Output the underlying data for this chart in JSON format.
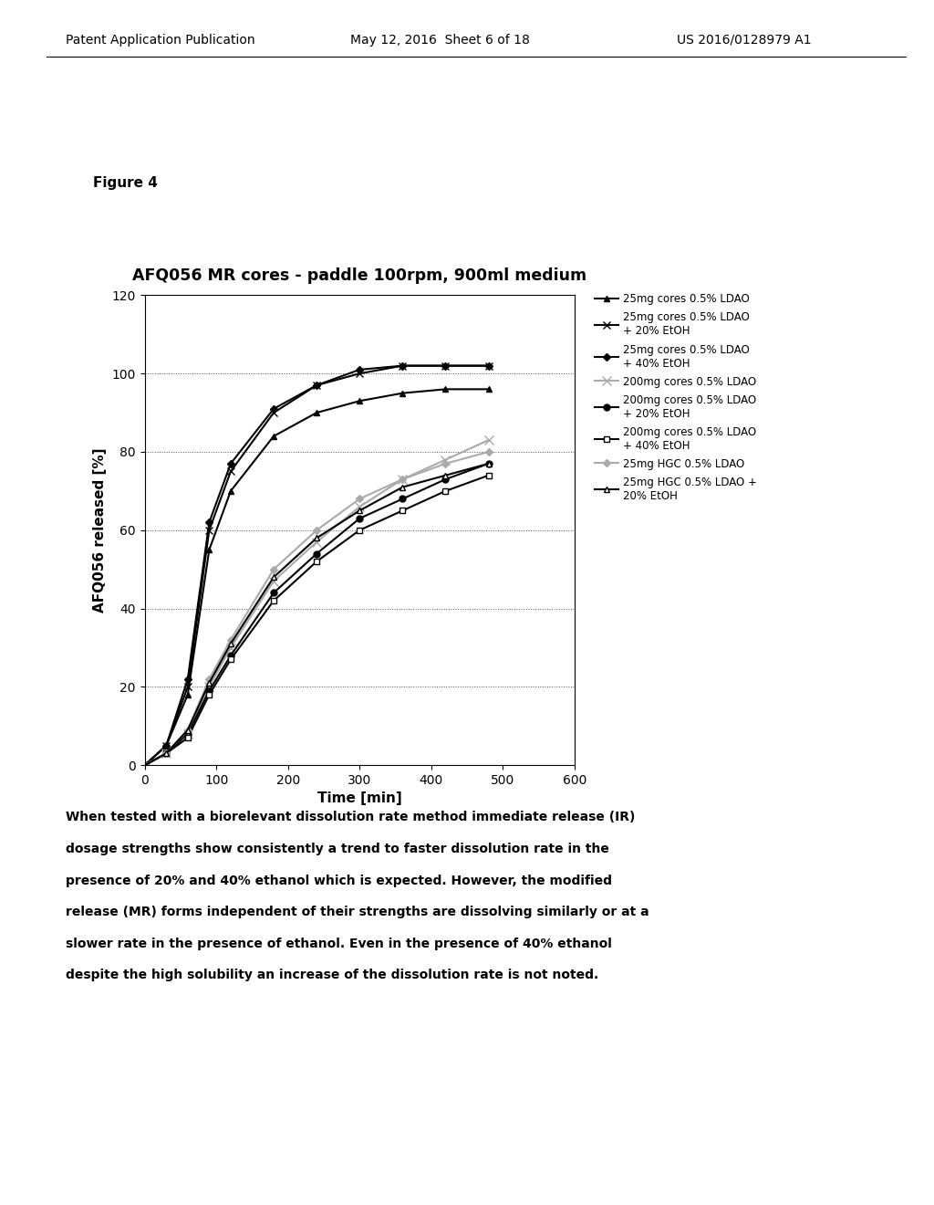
{
  "title": "AFQ056 MR cores - paddle 100rpm, 900ml medium",
  "xlabel": "Time [min]",
  "ylabel": "AFQ056 released [%]",
  "figure_label": "Figure 4",
  "header_left": "Patent Application Publication",
  "header_mid": "May 12, 2016  Sheet 6 of 18",
  "header_right": "US 2016/0128979 A1",
  "xlim": [
    0,
    600
  ],
  "ylim": [
    0,
    120
  ],
  "xticks": [
    0,
    100,
    200,
    300,
    400,
    500,
    600
  ],
  "yticks": [
    0,
    20,
    40,
    60,
    80,
    100,
    120
  ],
  "body_lines": [
    "When tested with a biorelevant dissolution rate method immediate release (IR)",
    "dosage strengths show consistently a trend to faster dissolution rate in the",
    "presence of 20% and 40% ethanol which is expected. However, the modified",
    "release (MR) forms independent of their strengths are dissolving similarly or at a",
    "slower rate in the presence of ethanol. Even in the presence of 40% ethanol",
    "despite the high solubility an increase of the dissolution rate is not noted."
  ],
  "series": [
    {
      "label": "25mg cores 0.5% LDAO",
      "x": [
        0,
        30,
        60,
        90,
        120,
        180,
        240,
        300,
        360,
        420,
        480
      ],
      "y": [
        0,
        5,
        18,
        55,
        70,
        84,
        90,
        93,
        95,
        96,
        96
      ],
      "marker": "^",
      "color": "#000000",
      "linestyle": "-",
      "ms": 5,
      "mfc": "#000000",
      "lw": 1.5
    },
    {
      "label": "25mg cores 0.5% LDAO\n+ 20% EtOH",
      "x": [
        0,
        30,
        60,
        90,
        120,
        180,
        240,
        300,
        360,
        420,
        480
      ],
      "y": [
        0,
        5,
        20,
        60,
        75,
        90,
        97,
        100,
        102,
        102,
        102
      ],
      "marker": "x",
      "color": "#000000",
      "linestyle": "-",
      "ms": 6,
      "mfc": "#000000",
      "lw": 1.5
    },
    {
      "label": "25mg cores 0.5% LDAO\n+ 40% EtOH",
      "x": [
        0,
        30,
        60,
        90,
        120,
        180,
        240,
        300,
        360,
        420,
        480
      ],
      "y": [
        0,
        5,
        22,
        62,
        77,
        91,
        97,
        101,
        102,
        102,
        102
      ],
      "marker": "D",
      "color": "#000000",
      "linestyle": "-",
      "ms": 4,
      "mfc": "#000000",
      "lw": 1.5
    },
    {
      "label": "200mg cores 0.5% LDAO",
      "x": [
        0,
        30,
        60,
        90,
        120,
        180,
        240,
        300,
        360,
        420,
        480
      ],
      "y": [
        0,
        3,
        8,
        20,
        30,
        47,
        57,
        66,
        73,
        78,
        83
      ],
      "marker": "x",
      "color": "#aaaaaa",
      "linestyle": "-",
      "ms": 7,
      "mfc": "#aaaaaa",
      "lw": 1.5
    },
    {
      "label": "200mg cores 0.5% LDAO\n+ 20% EtOH",
      "x": [
        0,
        30,
        60,
        90,
        120,
        180,
        240,
        300,
        360,
        420,
        480
      ],
      "y": [
        0,
        3,
        8,
        19,
        28,
        44,
        54,
        63,
        68,
        73,
        77
      ],
      "marker": "o",
      "color": "#000000",
      "linestyle": "-",
      "ms": 5,
      "mfc": "#000000",
      "lw": 1.5
    },
    {
      "label": "200mg cores 0.5% LDAO\n+ 40% EtOH",
      "x": [
        0,
        30,
        60,
        90,
        120,
        180,
        240,
        300,
        360,
        420,
        480
      ],
      "y": [
        0,
        3,
        7,
        18,
        27,
        42,
        52,
        60,
        65,
        70,
        74
      ],
      "marker": "s",
      "color": "#000000",
      "linestyle": "-",
      "ms": 5,
      "mfc": "#ffffff",
      "lw": 1.5
    },
    {
      "label": "25mg HGC 0.5% LDAO",
      "x": [
        0,
        30,
        60,
        90,
        120,
        180,
        240,
        300,
        360,
        420,
        480
      ],
      "y": [
        0,
        3,
        9,
        22,
        32,
        50,
        60,
        68,
        73,
        77,
        80
      ],
      "marker": "D",
      "color": "#aaaaaa",
      "linestyle": "-",
      "ms": 4,
      "mfc": "#aaaaaa",
      "lw": 1.5
    },
    {
      "label": "25mg HGC 0.5% LDAO +\n20% EtOH",
      "x": [
        0,
        30,
        60,
        90,
        120,
        180,
        240,
        300,
        360,
        420,
        480
      ],
      "y": [
        0,
        3,
        9,
        21,
        31,
        48,
        58,
        65,
        71,
        74,
        77
      ],
      "marker": "^",
      "color": "#000000",
      "linestyle": "-",
      "ms": 5,
      "mfc": "#ffffff",
      "lw": 1.5
    }
  ]
}
